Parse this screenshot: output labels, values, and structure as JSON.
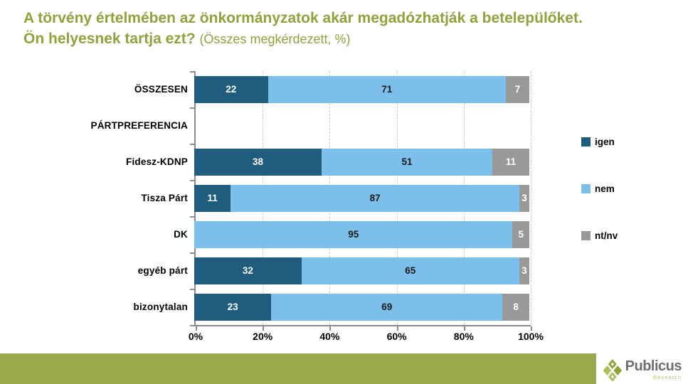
{
  "title": {
    "line1": "A törvény értelmében az önkormányzatok akár megadózhatják a betelepülőket.",
    "line2": "Ön helyesnek tartja ezt?",
    "note": "(Összes megkérdezett, %)"
  },
  "colors": {
    "title_green": "#8FA23C",
    "footer_green": "#9AA94C",
    "igen": "#1F5C7D",
    "nem": "#7CBFEA",
    "ntnv": "#999999",
    "axis": "#8C8C8C",
    "gridline": "#C8C8C8",
    "logo_text_gray": "#6D6E71"
  },
  "chart_data": {
    "type": "bar",
    "orientation": "horizontal",
    "stacked": true,
    "grid": "dashed-vertical",
    "legend_position": "right",
    "xlim": [
      0,
      100
    ],
    "x_ticks": [
      "0%",
      "20%",
      "40%",
      "60%",
      "80%",
      "100%"
    ],
    "x_tick_values": [
      0,
      20,
      40,
      60,
      80,
      100
    ],
    "categories": [
      "ÖSSZESEN",
      "PÁRTPREFERENCIA",
      "Fidesz-KDNP",
      "Tisza Párt",
      "DK",
      "egyéb párt",
      "bizonytalan"
    ],
    "series": [
      {
        "name": "igen",
        "color": "#1F5C7D",
        "label_color": "#FFFFFF",
        "values": [
          22,
          null,
          38,
          11,
          0,
          32,
          23
        ]
      },
      {
        "name": "nem",
        "color": "#7CBFEA",
        "label_color": "#1A1A1A",
        "values": [
          71,
          null,
          51,
          87,
          95,
          65,
          69
        ]
      },
      {
        "name": "nt/nv",
        "color": "#999999",
        "label_color": "#FFFFFF",
        "values": [
          7,
          null,
          11,
          3,
          5,
          3,
          8
        ]
      }
    ]
  },
  "legend": {
    "items": [
      {
        "label": "igen",
        "color": "#1F5C7D"
      },
      {
        "label": "nem",
        "color": "#7CBFEA"
      },
      {
        "label": "nt/nv",
        "color": "#999999"
      }
    ]
  },
  "logo": {
    "name": "Publicus",
    "sub": "Research"
  }
}
